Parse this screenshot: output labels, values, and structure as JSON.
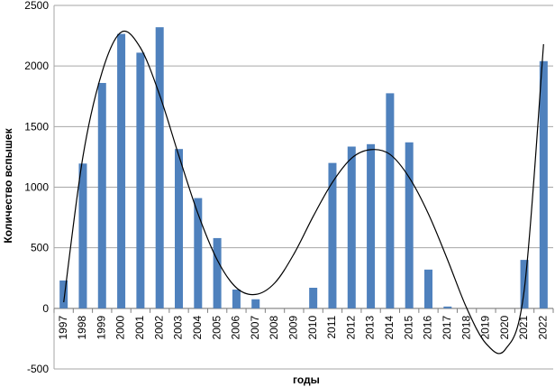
{
  "chart_data": {
    "type": "bar",
    "title": "",
    "xlabel": "годы",
    "ylabel": "Количество вспышек",
    "ylim": [
      -500,
      2500
    ],
    "yticks": [
      -500,
      0,
      500,
      1000,
      1500,
      2000,
      2500
    ],
    "grid": true,
    "legend": "none",
    "colors": {
      "bar": "#4f81bd",
      "trend": "#000000",
      "grid": "#a6a6a6"
    },
    "categories": [
      "1997",
      "1998",
      "1999",
      "2000",
      "2001",
      "2002",
      "2003",
      "2004",
      "2005",
      "2006",
      "2007",
      "2008",
      "2009",
      "2010",
      "2011",
      "2012",
      "2013",
      "2014",
      "2015",
      "2016",
      "2017",
      "2018",
      "2019",
      "2020",
      "2021",
      "2022"
    ],
    "values": [
      230,
      1195,
      1860,
      2265,
      2110,
      2320,
      1315,
      910,
      580,
      155,
      75,
      0,
      0,
      170,
      1200,
      1335,
      1355,
      1775,
      1370,
      320,
      15,
      0,
      0,
      0,
      400,
      2040
    ],
    "trendline": {
      "type": "polynomial",
      "points": [
        [
          "1997",
          50
        ],
        [
          "1998",
          1250
        ],
        [
          "1999",
          1950
        ],
        [
          "2000",
          2280
        ],
        [
          "2001",
          2150
        ],
        [
          "2002",
          1760
        ],
        [
          "2003",
          1260
        ],
        [
          "2004",
          780
        ],
        [
          "2005",
          400
        ],
        [
          "2006",
          170
        ],
        [
          "2007",
          115
        ],
        [
          "2008",
          210
        ],
        [
          "2009",
          450
        ],
        [
          "2010",
          760
        ],
        [
          "2011",
          1040
        ],
        [
          "2012",
          1240
        ],
        [
          "2013",
          1310
        ],
        [
          "2014",
          1270
        ],
        [
          "2015",
          1080
        ],
        [
          "2016",
          780
        ],
        [
          "2017",
          400
        ],
        [
          "2018",
          0
        ],
        [
          "2019",
          -290
        ],
        [
          "2020",
          -340
        ],
        [
          "2021",
          160
        ],
        [
          "2022",
          2180
        ]
      ]
    }
  }
}
